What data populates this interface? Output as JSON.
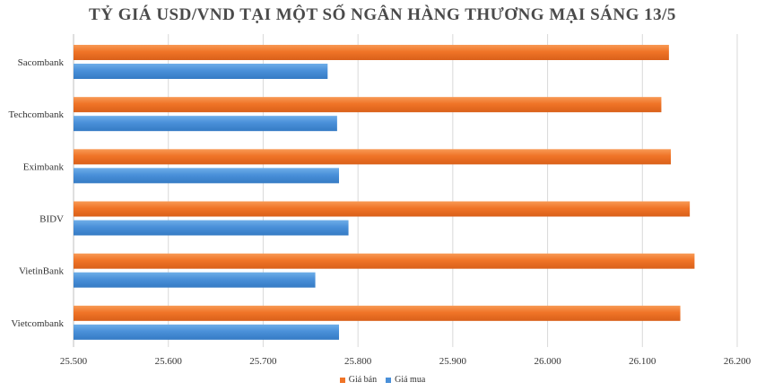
{
  "chart_data": {
    "type": "bar",
    "orientation": "horizontal",
    "title": "TỶ GIÁ USD/VND TẠI MỘT SỐ NGÂN HÀNG THƯƠNG MẠI SÁNG 13/5",
    "categories": [
      "Sacombank",
      "Techcombank",
      "Eximbank",
      "BIDV",
      "VietinBank",
      "Vietcombank"
    ],
    "series": [
      {
        "name": "Giá bán",
        "color": "#F07427",
        "values": [
          26128,
          26120,
          26130,
          26150,
          26155,
          26140
        ]
      },
      {
        "name": "Giá mua",
        "color": "#4A90D9",
        "values": [
          25768,
          25778,
          25780,
          25790,
          25755,
          25780
        ]
      }
    ],
    "xlim": [
      25500,
      26200
    ],
    "x_ticks": [
      25500,
      25600,
      25700,
      25800,
      25900,
      26000,
      26100,
      26200
    ],
    "x_tick_labels": [
      "25.500",
      "25.600",
      "25.700",
      "25.800",
      "25.900",
      "26.000",
      "26.100",
      "26.200"
    ],
    "grid": true,
    "legend_position": "bottom"
  }
}
